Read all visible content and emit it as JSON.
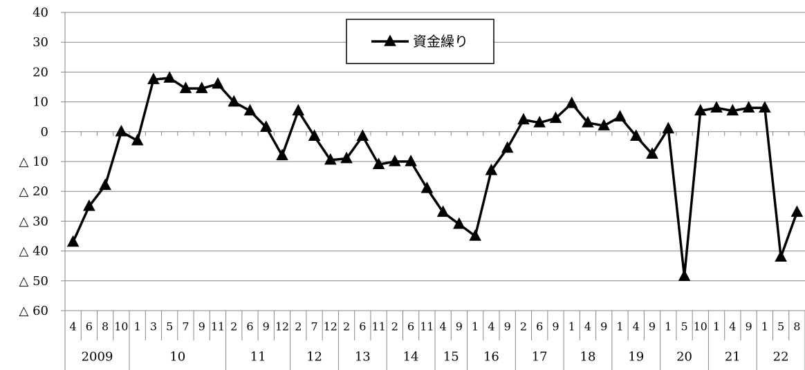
{
  "chart_data": {
    "type": "line",
    "title": "",
    "xlabel": "",
    "ylabel": "",
    "ylim": [
      -60,
      40
    ],
    "yticks": [
      40,
      30,
      20,
      10,
      0,
      -10,
      -20,
      -30,
      -40,
      -50,
      -60
    ],
    "ytick_labels": [
      "40",
      "30",
      "20",
      "10",
      "0",
      "△ 10",
      "△ 20",
      "△ 30",
      "△ 40",
      "△ 50",
      "△ 60"
    ],
    "grid": true,
    "legend": "top-center",
    "month_labels": [
      "4",
      "6",
      "8",
      "10",
      "1",
      "3",
      "5",
      "7",
      "9",
      "11",
      "2",
      "6",
      "9",
      "12",
      "2",
      "7",
      "12",
      "2",
      "6",
      "11",
      "2",
      "6",
      "11",
      "4",
      "9",
      "1",
      "4",
      "9",
      "2",
      "6",
      "9",
      "1",
      "4",
      "9",
      "1",
      "4",
      "9",
      "1",
      "5",
      "10",
      "1",
      "4",
      "9",
      "1",
      "5",
      "8"
    ],
    "year_groups": [
      {
        "label": "2009",
        "count": 4
      },
      {
        "label": "10",
        "count": 6
      },
      {
        "label": "11",
        "count": 4
      },
      {
        "label": "12",
        "count": 3
      },
      {
        "label": "13",
        "count": 3
      },
      {
        "label": "14",
        "count": 3
      },
      {
        "label": "15",
        "count": 2
      },
      {
        "label": "16",
        "count": 3
      },
      {
        "label": "17",
        "count": 3
      },
      {
        "label": "18",
        "count": 3
      },
      {
        "label": "19",
        "count": 3
      },
      {
        "label": "20",
        "count": 3
      },
      {
        "label": "21",
        "count": 3
      },
      {
        "label": "22",
        "count": 3
      }
    ],
    "series": [
      {
        "name": "資金繰り",
        "color": "#000000",
        "marker": "triangle",
        "values": [
          -37,
          -25,
          -18,
          0,
          -3,
          17.5,
          18,
          14.5,
          14.5,
          16,
          10,
          7,
          1.5,
          -8,
          7,
          -1.5,
          -9.5,
          -9,
          -1.5,
          -11,
          -10,
          -10,
          -19,
          -27,
          -31,
          -35,
          -13,
          -5.5,
          4,
          3,
          4.5,
          9.5,
          3,
          2,
          5,
          -1.5,
          -7.5,
          1,
          -48.5,
          7,
          8,
          7,
          8,
          8,
          -42,
          -27
        ]
      }
    ]
  }
}
